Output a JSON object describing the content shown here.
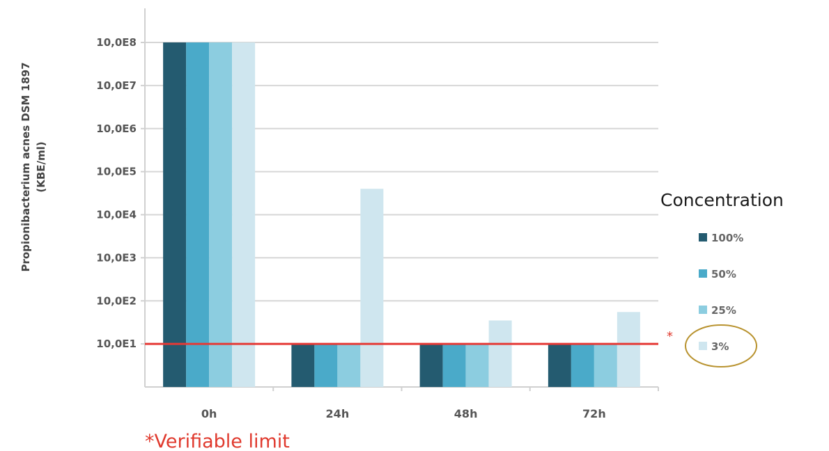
{
  "chart_data": {
    "type": "bar",
    "title": "",
    "xlabel": "",
    "ylabel": "Propionibacterium acnes DSM 1897",
    "ylabel_unit": "(KBE/ml)",
    "scale": "log",
    "ylim_exponent": [
      0,
      8
    ],
    "yticks": [
      {
        "label": "10,0E1",
        "exp": 1
      },
      {
        "label": "10,0E2",
        "exp": 2
      },
      {
        "label": "10,0E3",
        "exp": 3
      },
      {
        "label": "10,0E4",
        "exp": 4
      },
      {
        "label": "10,0E5",
        "exp": 5
      },
      {
        "label": "10,0E6",
        "exp": 6
      },
      {
        "label": "10,0E7",
        "exp": 7
      },
      {
        "label": "10,0E8",
        "exp": 8
      }
    ],
    "categories": [
      "0h",
      "24h",
      "48h",
      "72h"
    ],
    "series": [
      {
        "name": "100%",
        "color": "#245b70",
        "values": [
          100000000.0,
          10,
          10,
          10
        ]
      },
      {
        "name": "50%",
        "color": "#4aaac9",
        "values": [
          100000000.0,
          10,
          10,
          10
        ]
      },
      {
        "name": "25%",
        "color": "#8ccde0",
        "values": [
          100000000.0,
          10,
          10,
          10
        ]
      },
      {
        "name": "3%",
        "color": "#cfe6ef",
        "values": [
          100000000.0,
          40000,
          35,
          55
        ]
      }
    ],
    "legend": {
      "title": "Concentration",
      "position": "right"
    },
    "grid": true,
    "reference_line": {
      "value": 10,
      "color": "#e53935",
      "marker": "*"
    },
    "highlight": {
      "series": "3%",
      "shape": "ellipse",
      "color": "#b8922e"
    },
    "footnote": "*Verifiable limit"
  }
}
